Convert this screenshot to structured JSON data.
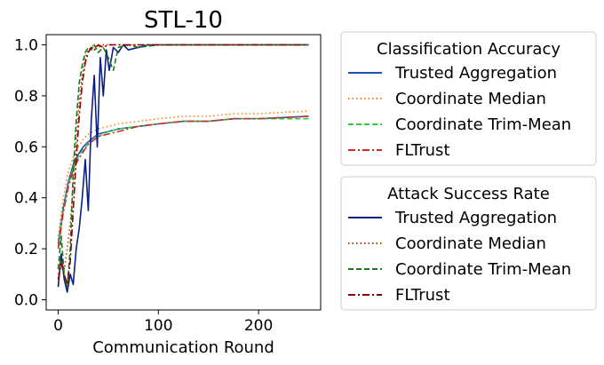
{
  "chart_data": {
    "type": "line",
    "title": "STL-10",
    "xlabel": "Communication Round",
    "ylabel": "",
    "xlim": [
      -12,
      262
    ],
    "ylim": [
      -0.04,
      1.04
    ],
    "x_ticks": [
      0,
      100,
      200
    ],
    "y_ticks": [
      0.0,
      0.2,
      0.4,
      0.6,
      0.8,
      1.0
    ],
    "x_tick_labels": [
      "0",
      "100",
      "200"
    ],
    "y_tick_labels": [
      "0.0",
      "0.2",
      "0.4",
      "0.6",
      "0.8",
      "1.0"
    ],
    "grid": false,
    "legends": [
      {
        "title": "Classification Accuracy",
        "placement": "right-top",
        "entries": [
          {
            "label": "Trusted Aggregation",
            "color": "#1f4fbf",
            "dash": "solid"
          },
          {
            "label": "Coordinate Median",
            "color": "#ff7f0e",
            "dash": "dotted"
          },
          {
            "label": "Coordinate Trim-Mean",
            "color": "#2ecc40",
            "dash": "dashed"
          },
          {
            "label": "FLTrust",
            "color": "#d62728",
            "dash": "dashdot"
          }
        ]
      },
      {
        "title": "Attack Success Rate",
        "placement": "right-bottom",
        "entries": [
          {
            "label": "Trusted Aggregation",
            "color": "#0b1f80",
            "dash": "solid"
          },
          {
            "label": "Coordinate Median",
            "color": "#b5400a",
            "dash": "dotted"
          },
          {
            "label": "Coordinate Trim-Mean",
            "color": "#1a7a1a",
            "dash": "dashed"
          },
          {
            "label": "FLTrust",
            "color": "#8b0000",
            "dash": "dashdot"
          }
        ]
      }
    ],
    "series": [
      {
        "name": "Classification Accuracy — Trusted Aggregation",
        "color": "#1f4fbf",
        "dash": "solid",
        "x": [
          0,
          5,
          10,
          15,
          20,
          25,
          30,
          40,
          50,
          60,
          80,
          100,
          125,
          150,
          175,
          200,
          225,
          250
        ],
        "y": [
          0.22,
          0.36,
          0.46,
          0.53,
          0.57,
          0.6,
          0.62,
          0.65,
          0.66,
          0.67,
          0.68,
          0.69,
          0.7,
          0.7,
          0.71,
          0.71,
          0.715,
          0.72
        ]
      },
      {
        "name": "Classification Accuracy — Coordinate Median",
        "color": "#ff7f0e",
        "dash": "dotted",
        "x": [
          0,
          5,
          10,
          15,
          20,
          25,
          30,
          40,
          50,
          60,
          80,
          100,
          125,
          150,
          175,
          200,
          225,
          250
        ],
        "y": [
          0.25,
          0.4,
          0.5,
          0.56,
          0.6,
          0.63,
          0.65,
          0.67,
          0.68,
          0.69,
          0.7,
          0.71,
          0.72,
          0.72,
          0.73,
          0.73,
          0.735,
          0.74
        ]
      },
      {
        "name": "Classification Accuracy — Coordinate Trim-Mean",
        "color": "#2ecc40",
        "dash": "dashed",
        "x": [
          0,
          5,
          10,
          15,
          20,
          25,
          30,
          40,
          50,
          60,
          80,
          100,
          125,
          150,
          175,
          200,
          225,
          250
        ],
        "y": [
          0.21,
          0.35,
          0.45,
          0.52,
          0.56,
          0.59,
          0.61,
          0.64,
          0.66,
          0.67,
          0.68,
          0.69,
          0.7,
          0.7,
          0.71,
          0.71,
          0.71,
          0.71
        ]
      },
      {
        "name": "Classification Accuracy — FLTrust",
        "color": "#d62728",
        "dash": "dashdot",
        "x": [
          0,
          5,
          10,
          15,
          20,
          25,
          30,
          40,
          50,
          60,
          80,
          100,
          125,
          150,
          175,
          200,
          225,
          250
        ],
        "y": [
          0.2,
          0.34,
          0.44,
          0.51,
          0.55,
          0.58,
          0.61,
          0.64,
          0.65,
          0.66,
          0.68,
          0.69,
          0.7,
          0.7,
          0.71,
          0.71,
          0.715,
          0.72
        ]
      },
      {
        "name": "Attack Success Rate — Trusted Aggregation",
        "color": "#0b1f80",
        "dash": "solid",
        "x": [
          0,
          3,
          6,
          9,
          12,
          15,
          18,
          21,
          24,
          27,
          30,
          33,
          36,
          39,
          42,
          45,
          48,
          51,
          55,
          60,
          65,
          70,
          80,
          90,
          100,
          150,
          200,
          250
        ],
        "y": [
          0.05,
          0.18,
          0.08,
          0.03,
          0.1,
          0.06,
          0.2,
          0.28,
          0.4,
          0.55,
          0.35,
          0.7,
          0.88,
          0.6,
          0.95,
          0.8,
          0.98,
          0.9,
          0.99,
          0.97,
          1.0,
          0.98,
          0.99,
          1.0,
          1.0,
          1.0,
          1.0,
          1.0
        ]
      },
      {
        "name": "Attack Success Rate — Coordinate Median",
        "color": "#b5400a",
        "dash": "dotted",
        "x": [
          0,
          3,
          6,
          9,
          12,
          15,
          18,
          21,
          24,
          27,
          30,
          33,
          36,
          40,
          45,
          50,
          60,
          80,
          100,
          150,
          200,
          250
        ],
        "y": [
          0.1,
          0.15,
          0.12,
          0.2,
          0.3,
          0.45,
          0.62,
          0.78,
          0.88,
          0.95,
          0.98,
          0.99,
          1.0,
          0.99,
          1.0,
          1.0,
          1.0,
          1.0,
          1.0,
          1.0,
          1.0,
          1.0
        ]
      },
      {
        "name": "Attack Success Rate — Coordinate Trim-Mean",
        "color": "#1a7a1a",
        "dash": "dashed",
        "x": [
          0,
          3,
          6,
          9,
          12,
          15,
          18,
          21,
          24,
          27,
          30,
          33,
          36,
          40,
          45,
          50,
          55,
          60,
          70,
          80,
          100,
          150,
          200,
          250
        ],
        "y": [
          0.12,
          0.25,
          0.1,
          0.05,
          0.2,
          0.5,
          0.7,
          0.85,
          0.92,
          0.97,
          0.99,
          0.98,
          1.0,
          0.97,
          0.99,
          0.95,
          0.9,
          0.99,
          1.0,
          0.99,
          1.0,
          1.0,
          1.0,
          1.0
        ]
      },
      {
        "name": "Attack Success Rate — FLTrust",
        "color": "#8b0000",
        "dash": "dashdot",
        "x": [
          0,
          3,
          6,
          9,
          12,
          15,
          18,
          21,
          24,
          27,
          30,
          33,
          36,
          40,
          45,
          50,
          60,
          80,
          100,
          150,
          200,
          250
        ],
        "y": [
          0.08,
          0.14,
          0.1,
          0.06,
          0.15,
          0.35,
          0.55,
          0.72,
          0.85,
          0.93,
          0.97,
          0.99,
          0.98,
          1.0,
          0.99,
          1.0,
          1.0,
          1.0,
          1.0,
          1.0,
          1.0,
          1.0
        ]
      }
    ]
  }
}
